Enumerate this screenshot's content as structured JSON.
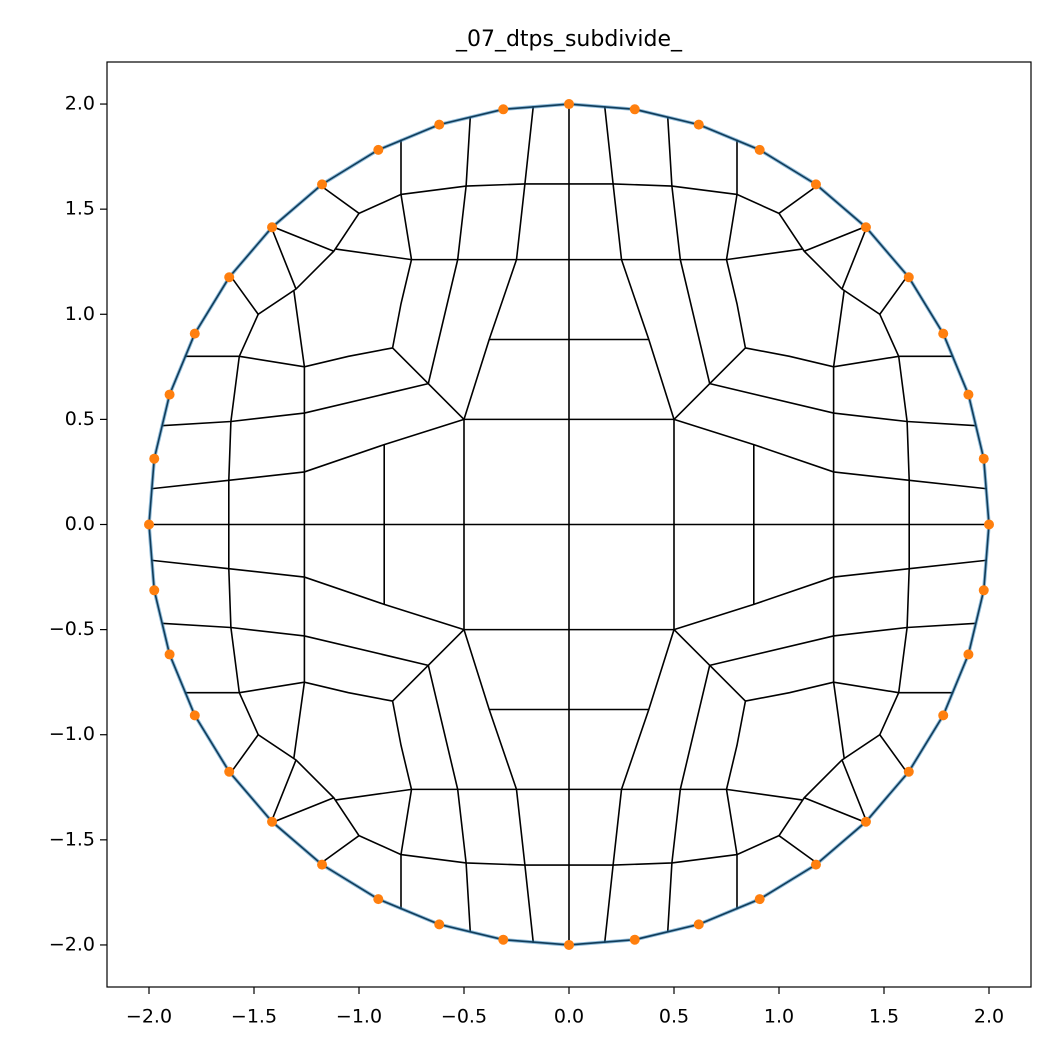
{
  "chart_data": {
    "type": "scatter",
    "title": "_07_dtps_subdivide_",
    "xlim": [
      -2.2,
      2.2
    ],
    "ylim": [
      -2.2,
      2.2
    ],
    "xticks": [
      {
        "value": -2,
        "label": "−2.0"
      },
      {
        "value": -1.5,
        "label": "−1.5"
      },
      {
        "value": -1,
        "label": "−1.0"
      },
      {
        "value": -0.5,
        "label": "−0.5"
      },
      {
        "value": 0,
        "label": "0.0"
      },
      0.5,
      {
        "value": 1,
        "label": "1.0"
      },
      1.5,
      {
        "value": 2,
        "label": "2.0"
      }
    ],
    "yticks": [
      {
        "value": -2,
        "label": "−2.0"
      },
      {
        "value": -1.5,
        "label": "−1.5"
      },
      {
        "value": -1,
        "label": "−1.0"
      },
      {
        "value": -0.5,
        "label": "−0.5"
      },
      {
        "value": 0,
        "label": "0.0"
      },
      0.5,
      {
        "value": 1,
        "label": "1.0"
      },
      1.5,
      {
        "value": 2,
        "label": "2.0"
      }
    ],
    "mesh": {
      "color": "#000000",
      "lines": [
        {
          "x": [
            2,
            1.975,
            1.902,
            1.782,
            1.618,
            1.414,
            1.176,
            0.908,
            0.618,
            0.313,
            0,
            -0.313,
            -0.618,
            -0.908,
            -1.176,
            -1.414,
            -1.618,
            -1.782,
            -1.902,
            -1.975,
            -2,
            -1.975,
            -1.902,
            -1.782,
            -1.618,
            -1.414,
            -1.176,
            -0.908,
            -0.618,
            -0.313,
            0,
            0.313,
            0.618,
            0.908,
            1.176,
            1.414,
            1.618,
            1.782,
            1.902,
            1.975,
            2
          ],
          "y": [
            0,
            0.313,
            0.618,
            0.908,
            1.176,
            1.414,
            1.618,
            1.782,
            1.902,
            1.975,
            2,
            1.975,
            1.902,
            1.782,
            1.618,
            1.414,
            1.176,
            0.908,
            0.618,
            0.313,
            0,
            -0.313,
            -0.618,
            -0.908,
            -1.176,
            -1.414,
            -1.618,
            -1.782,
            -1.902,
            -1.975,
            -2,
            -1.975,
            -1.902,
            -1.782,
            -1.618,
            -1.414,
            -1.176,
            -0.908,
            -0.618,
            -0.313,
            0
          ]
        },
        {
          "x": [
            -2,
            2
          ],
          "y": [
            0,
            0
          ]
        },
        {
          "x": [
            0,
            0
          ],
          "y": [
            -2,
            2
          ]
        },
        {
          "x": [
            -0.5,
            0.5,
            0.5,
            -0.5,
            -0.5
          ],
          "y": [
            -0.5,
            -0.5,
            0.5,
            0.5,
            -0.5
          ]
        },
        {
          "x": [
            -0.38,
            0.38
          ],
          "y": [
            0.88,
            0.88
          ]
        },
        {
          "x": [
            -0.38,
            0.38
          ],
          "y": [
            -0.88,
            -0.88
          ]
        },
        {
          "x": [
            0.88,
            0.88
          ],
          "y": [
            -0.38,
            0.38
          ]
        },
        {
          "x": [
            -0.88,
            -0.88
          ],
          "y": [
            -0.38,
            0.38
          ]
        },
        {
          "x": [
            -1.11,
            -0.75,
            -0.53,
            -0.25,
            0,
            0.25,
            0.53,
            0.75,
            1.11
          ],
          "y": [
            1.31,
            1.26,
            1.26,
            1.26,
            1.26,
            1.26,
            1.26,
            1.26,
            1.31
          ]
        },
        {
          "x": [
            -1.11,
            -0.75,
            -0.53,
            -0.25,
            0,
            0.25,
            0.53,
            0.75,
            1.11
          ],
          "y": [
            -1.31,
            -1.26,
            -1.26,
            -1.26,
            -1.26,
            -1.26,
            -1.26,
            -1.26,
            -1.31
          ]
        },
        {
          "x": [
            -1.0,
            -0.8,
            -0.49,
            -0.21,
            0,
            0.21,
            0.49,
            0.8,
            1.0
          ],
          "y": [
            1.48,
            1.57,
            1.61,
            1.62,
            1.62,
            1.62,
            1.61,
            1.57,
            1.48
          ]
        },
        {
          "x": [
            -1.0,
            -0.8,
            -0.49,
            -0.21,
            0,
            0.21,
            0.49,
            0.8,
            1.0
          ],
          "y": [
            -1.48,
            -1.57,
            -1.61,
            -1.62,
            -1.62,
            -1.62,
            -1.61,
            -1.57,
            -1.48
          ]
        },
        {
          "x": [
            1.31,
            1.26,
            1.26,
            1.26,
            1.26,
            1.26,
            1.26,
            1.26,
            1.31
          ],
          "y": [
            -1.11,
            -0.75,
            -0.53,
            -0.25,
            0,
            0.25,
            0.53,
            0.75,
            1.11
          ]
        },
        {
          "x": [
            -1.31,
            -1.26,
            -1.26,
            -1.26,
            -1.26,
            -1.26,
            -1.26,
            -1.26,
            -1.31
          ],
          "y": [
            -1.11,
            -0.75,
            -0.53,
            -0.25,
            0,
            0.25,
            0.53,
            0.75,
            1.11
          ]
        },
        {
          "x": [
            1.48,
            1.57,
            1.61,
            1.62,
            1.62,
            1.62,
            1.61,
            1.57,
            1.48
          ],
          "y": [
            -1.0,
            -0.8,
            -0.49,
            -0.21,
            0,
            0.21,
            0.49,
            0.8,
            1.0
          ]
        },
        {
          "x": [
            -1.48,
            -1.57,
            -1.61,
            -1.62,
            -1.62,
            -1.62,
            -1.61,
            -1.57,
            -1.48
          ],
          "y": [
            -1.0,
            -0.8,
            -0.49,
            -0.21,
            0,
            0.21,
            0.49,
            0.8,
            1.0
          ]
        },
        {
          "x": [
            0.5,
            0.38,
            0.25,
            0.21,
            0.17
          ],
          "y": [
            0.5,
            0.88,
            1.26,
            1.62,
            1.99
          ]
        },
        {
          "x": [
            0.67,
            0.53,
            0.49,
            0.47
          ],
          "y": [
            0.67,
            1.26,
            1.61,
            1.94
          ]
        },
        {
          "x": [
            0.84,
            0.8,
            0.75,
            0.8,
            0.8
          ],
          "y": [
            0.84,
            1.05,
            1.26,
            1.57,
            1.83
          ]
        },
        {
          "x": [
            0.5,
            0.88,
            1.26,
            1.62,
            1.99
          ],
          "y": [
            0.5,
            0.38,
            0.25,
            0.21,
            0.17
          ]
        },
        {
          "x": [
            0.67,
            1.26,
            1.61,
            1.94
          ],
          "y": [
            0.67,
            0.53,
            0.49,
            0.47
          ]
        },
        {
          "x": [
            0.84,
            1.05,
            1.26,
            1.57,
            1.83
          ],
          "y": [
            0.84,
            0.8,
            0.75,
            0.8,
            0.8
          ]
        },
        {
          "x": [
            0.5,
            0.67,
            0.84
          ],
          "y": [
            0.5,
            0.67,
            0.84
          ]
        },
        {
          "x": [
            1.18,
            1.0,
            1.12,
            1.3,
            1.48,
            1.61
          ],
          "y": [
            1.61,
            1.48,
            1.3,
            1.12,
            1.0,
            1.18
          ]
        },
        {
          "x": [
            1.12,
            1.42,
            1.3
          ],
          "y": [
            1.3,
            1.42,
            1.12
          ]
        },
        {
          "x": [
            -0.5,
            -0.38,
            -0.25,
            -0.21,
            -0.17
          ],
          "y": [
            0.5,
            0.88,
            1.26,
            1.62,
            1.99
          ]
        },
        {
          "x": [
            -0.67,
            -0.53,
            -0.49,
            -0.47
          ],
          "y": [
            0.67,
            1.26,
            1.61,
            1.94
          ]
        },
        {
          "x": [
            -0.84,
            -0.8,
            -0.75,
            -0.8,
            -0.8
          ],
          "y": [
            0.84,
            1.05,
            1.26,
            1.57,
            1.83
          ]
        },
        {
          "x": [
            -0.5,
            -0.88,
            -1.26,
            -1.62,
            -1.99
          ],
          "y": [
            0.5,
            0.38,
            0.25,
            0.21,
            0.17
          ]
        },
        {
          "x": [
            -0.67,
            -1.26,
            -1.61,
            -1.94
          ],
          "y": [
            0.67,
            0.53,
            0.49,
            0.47
          ]
        },
        {
          "x": [
            -0.84,
            -1.05,
            -1.26,
            -1.57,
            -1.83
          ],
          "y": [
            0.84,
            0.8,
            0.75,
            0.8,
            0.8
          ]
        },
        {
          "x": [
            -0.5,
            -0.67,
            -0.84
          ],
          "y": [
            0.5,
            0.67,
            0.84
          ]
        },
        {
          "x": [
            -1.18,
            -1.0,
            -1.12,
            -1.3,
            -1.48,
            -1.61
          ],
          "y": [
            1.61,
            1.48,
            1.3,
            1.12,
            1.0,
            1.18
          ]
        },
        {
          "x": [
            -1.12,
            -1.42,
            -1.3
          ],
          "y": [
            1.3,
            1.42,
            1.12
          ]
        },
        {
          "x": [
            -0.5,
            -0.38,
            -0.25,
            -0.21,
            -0.17
          ],
          "y": [
            -0.5,
            -0.88,
            -1.26,
            -1.62,
            -1.99
          ]
        },
        {
          "x": [
            -0.67,
            -0.53,
            -0.49,
            -0.47
          ],
          "y": [
            -0.67,
            -1.26,
            -1.61,
            -1.94
          ]
        },
        {
          "x": [
            -0.84,
            -0.8,
            -0.75,
            -0.8,
            -0.8
          ],
          "y": [
            -0.84,
            -1.05,
            -1.26,
            -1.57,
            -1.83
          ]
        },
        {
          "x": [
            -0.5,
            -0.88,
            -1.26,
            -1.62,
            -1.99
          ],
          "y": [
            -0.5,
            -0.38,
            -0.25,
            -0.21,
            -0.17
          ]
        },
        {
          "x": [
            -0.67,
            -1.26,
            -1.61,
            -1.94
          ],
          "y": [
            -0.67,
            -0.53,
            -0.49,
            -0.47
          ]
        },
        {
          "x": [
            -0.84,
            -1.05,
            -1.26,
            -1.57,
            -1.83
          ],
          "y": [
            -0.84,
            -0.8,
            -0.75,
            -0.8,
            -0.8
          ]
        },
        {
          "x": [
            -0.5,
            -0.67,
            -0.84
          ],
          "y": [
            -0.5,
            -0.67,
            -0.84
          ]
        },
        {
          "x": [
            -1.18,
            -1.0,
            -1.12,
            -1.3,
            -1.48,
            -1.61
          ],
          "y": [
            -1.61,
            -1.48,
            -1.3,
            -1.12,
            -1.0,
            -1.18
          ]
        },
        {
          "x": [
            -1.12,
            -1.42,
            -1.3
          ],
          "y": [
            -1.3,
            -1.42,
            -1.12
          ]
        },
        {
          "x": [
            0.5,
            0.38,
            0.25,
            0.21,
            0.17
          ],
          "y": [
            -0.5,
            -0.88,
            -1.26,
            -1.62,
            -1.99
          ]
        },
        {
          "x": [
            0.67,
            0.53,
            0.49,
            0.47
          ],
          "y": [
            -0.67,
            -1.26,
            -1.61,
            -1.94
          ]
        },
        {
          "x": [
            0.84,
            0.8,
            0.75,
            0.8,
            0.8
          ],
          "y": [
            -0.84,
            -1.05,
            -1.26,
            -1.57,
            -1.83
          ]
        },
        {
          "x": [
            0.5,
            0.88,
            1.26,
            1.62,
            1.99
          ],
          "y": [
            -0.5,
            -0.38,
            -0.25,
            -0.21,
            -0.17
          ]
        },
        {
          "x": [
            0.67,
            1.26,
            1.61,
            1.94
          ],
          "y": [
            -0.67,
            -0.53,
            -0.49,
            -0.47
          ]
        },
        {
          "x": [
            0.84,
            1.05,
            1.26,
            1.57,
            1.83
          ],
          "y": [
            -0.84,
            -0.8,
            -0.75,
            -0.8,
            -0.8
          ]
        },
        {
          "x": [
            0.5,
            0.67,
            0.84
          ],
          "y": [
            -0.5,
            -0.67,
            -0.84
          ]
        },
        {
          "x": [
            1.18,
            1.0,
            1.12,
            1.3,
            1.48,
            1.61
          ],
          "y": [
            -1.61,
            -1.48,
            -1.3,
            -1.12,
            -1.0,
            -1.18
          ]
        },
        {
          "x": [
            1.12,
            1.42,
            1.3
          ],
          "y": [
            -1.3,
            -1.42,
            -1.12
          ]
        }
      ]
    },
    "series": [
      {
        "color": "#1f77b4",
        "opacity": 0.5,
        "mode": "line",
        "x": [
          2,
          1.975,
          1.902,
          1.782,
          1.618,
          1.414,
          1.176,
          0.908,
          0.618,
          0.313,
          0,
          -0.313,
          -0.618,
          -0.908,
          -1.176,
          -1.414,
          -1.618,
          -1.782,
          -1.902,
          -1.975,
          -2,
          -1.975,
          -1.902,
          -1.782,
          -1.618,
          -1.414,
          -1.176,
          -0.908,
          -0.618,
          -0.313,
          0,
          0.313,
          0.618,
          0.908,
          1.176,
          1.414,
          1.618,
          1.782,
          1.902,
          1.975,
          2
        ],
        "values": [
          0,
          0.313,
          0.618,
          0.908,
          1.176,
          1.414,
          1.618,
          1.782,
          1.902,
          1.975,
          2,
          1.975,
          1.902,
          1.782,
          1.618,
          1.414,
          1.176,
          0.908,
          0.618,
          0.313,
          0,
          -0.313,
          -0.618,
          -0.908,
          -1.176,
          -1.414,
          -1.618,
          -1.782,
          -1.902,
          -1.975,
          -2,
          -1.975,
          -1.902,
          -1.782,
          -1.618,
          -1.414,
          -1.176,
          -0.908,
          -0.618,
          -0.313,
          0
        ]
      },
      {
        "color": "#ff7f0e",
        "opacity": 1,
        "mode": "points",
        "x": [
          2,
          1.975,
          1.902,
          1.782,
          1.618,
          1.414,
          1.176,
          0.908,
          0.618,
          0.313,
          0,
          -0.313,
          -0.618,
          -0.908,
          -1.176,
          -1.414,
          -1.618,
          -1.782,
          -1.902,
          -1.975,
          -2,
          -1.975,
          -1.902,
          -1.782,
          -1.618,
          -1.414,
          -1.176,
          -0.908,
          -0.618,
          -0.313,
          0,
          0.313,
          0.618,
          0.908,
          1.176,
          1.414,
          1.618,
          1.782,
          1.902,
          1.975
        ],
        "values": [
          0,
          0.313,
          0.618,
          0.908,
          1.176,
          1.414,
          1.618,
          1.782,
          1.902,
          1.975,
          2,
          1.975,
          1.902,
          1.782,
          1.618,
          1.414,
          1.176,
          0.908,
          0.618,
          0.313,
          0,
          -0.313,
          -0.618,
          -0.908,
          -1.176,
          -1.414,
          -1.618,
          -1.782,
          -1.902,
          -1.975,
          -2,
          -1.975,
          -1.902,
          -1.782,
          -1.618,
          -1.414,
          -1.176,
          -0.908,
          -0.618,
          -0.313
        ]
      }
    ]
  }
}
